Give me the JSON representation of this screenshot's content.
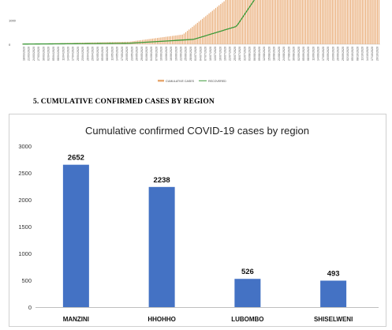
{
  "top_chart": {
    "y_ticks": [
      "2000",
      "1000",
      "0"
    ],
    "y_values": [
      2000,
      1000,
      0
    ],
    "x_labels": [
      "18/03/2020",
      "21/03/2020",
      "24/03/2020",
      "27/03/2020",
      "30/03/2020",
      "02/04/2020",
      "05/04/2020",
      "08/04/2020",
      "11/04/2020",
      "14/04/2020",
      "17/04/2020",
      "20/04/2020",
      "23/04/2020",
      "26/04/2020",
      "29/04/2020",
      "02/05/2020",
      "05/05/2020",
      "08/05/2020",
      "11/05/2020",
      "14/05/2020",
      "17/05/2020",
      "20/05/2020",
      "23/05/2020",
      "26/05/2020",
      "29/05/2020",
      "01/06/2020",
      "04/06/2020",
      "07/06/2020",
      "10/06/2020",
      "13/06/2020",
      "16/06/2020",
      "19/06/2020",
      "22/06/2020",
      "25/06/2020",
      "28/06/2020",
      "01/07/2020",
      "04/07/2020",
      "07/07/2020",
      "10/07/2020",
      "13/07/2020",
      "16/07/2020",
      "19/07/2020",
      "22/07/2020",
      "25/07/2020",
      "28/07/2020",
      "31/07/2020",
      "03/08/2020",
      "06/08/2020",
      "09/08/2020",
      "12/08/2020",
      "15/08/2020",
      "18/08/2020",
      "21/08/2020",
      "24/08/2020",
      "27/08/2020",
      "30/08/2020",
      "02/09/2020",
      "05/09/2020",
      "08/09/2020",
      "11/09/2020",
      "14/09/2020",
      "17/09/2020",
      "20/09/2020",
      "23/09/2020",
      "26/09/2020",
      "29/09/2020",
      "02/10/2020",
      "05/10/2020",
      "08/10/2020",
      "11/10/2020",
      "14/10/2020",
      "17/10/2020",
      "20/10/2020"
    ],
    "legend": [
      "CUMULATIVE CASES",
      "RECOVERED"
    ],
    "colors": {
      "cases": "#e8a870",
      "recovered": "#3d9a3a"
    }
  },
  "section_heading": "5.   CUMULATIVE CONFIRMED CASES BY REGION",
  "chart_data": {
    "type": "bar",
    "title": "Cumulative confirmed COVID-19 cases by region",
    "categories": [
      "MANZINI",
      "HHOHHO",
      "LUBOMBO",
      "SHISELWENI"
    ],
    "values": [
      2652,
      2238,
      526,
      493
    ],
    "value_labels": [
      "2652",
      "2238",
      "526",
      "493"
    ],
    "ylim": [
      0,
      3000
    ],
    "y_ticks": [
      0,
      500,
      1000,
      1500,
      2000,
      2500,
      3000
    ],
    "y_tick_labels": [
      "0",
      "500",
      "1000",
      "1500",
      "2000",
      "2500",
      "3000"
    ],
    "grid": false,
    "bar_color": "#4472c4"
  }
}
